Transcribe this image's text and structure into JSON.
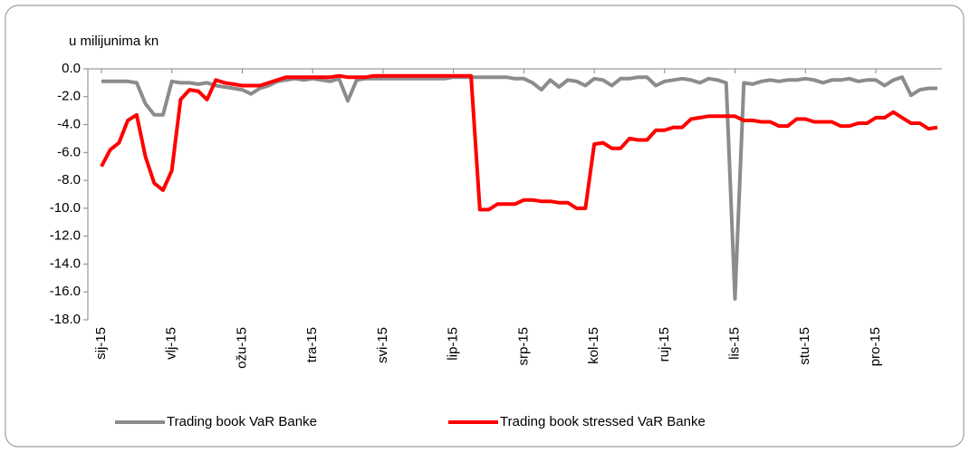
{
  "chart_data": {
    "type": "line",
    "axis_title": "u milijunima kn",
    "categories": [
      "sij-15",
      null,
      null,
      null,
      null,
      null,
      null,
      null,
      "vlj-15",
      null,
      null,
      null,
      null,
      null,
      null,
      null,
      "ožu-15",
      null,
      null,
      null,
      null,
      null,
      null,
      null,
      "tra-15",
      null,
      null,
      null,
      null,
      null,
      null,
      null,
      "svi-15",
      null,
      null,
      null,
      null,
      null,
      null,
      null,
      "lip-15",
      null,
      null,
      null,
      null,
      null,
      null,
      null,
      "srp-15",
      null,
      null,
      null,
      null,
      null,
      null,
      null,
      "kol-15",
      null,
      null,
      null,
      null,
      null,
      null,
      null,
      "ruj-15",
      null,
      null,
      null,
      null,
      null,
      null,
      null,
      "lis-15",
      null,
      null,
      null,
      null,
      null,
      null,
      null,
      "stu-15",
      null,
      null,
      null,
      null,
      null,
      null,
      null,
      "pro-15",
      null,
      null,
      null,
      null,
      null,
      null,
      null
    ],
    "series": [
      {
        "name": "Trading book VaR Banke",
        "color": "#8c8c8c",
        "values": [
          -0.9,
          -0.9,
          -0.9,
          -0.9,
          -1.0,
          -2.5,
          -3.3,
          -3.3,
          -0.9,
          -1.0,
          -1.0,
          -1.1,
          -1.0,
          -1.2,
          -1.3,
          -1.4,
          -1.5,
          -1.8,
          -1.4,
          -1.2,
          -0.9,
          -0.8,
          -0.7,
          -0.8,
          -0.7,
          -0.8,
          -0.9,
          -0.7,
          -2.3,
          -0.8,
          -0.7,
          -0.7,
          -0.7,
          -0.7,
          -0.7,
          -0.7,
          -0.7,
          -0.7,
          -0.7,
          -0.7,
          -0.6,
          -0.6,
          -0.6,
          -0.6,
          -0.6,
          -0.6,
          -0.6,
          -0.7,
          -0.7,
          -1.0,
          -1.5,
          -0.8,
          -1.3,
          -0.8,
          -0.9,
          -1.2,
          -0.7,
          -0.8,
          -1.2,
          -0.7,
          -0.7,
          -0.6,
          -0.6,
          -1.2,
          -0.9,
          -0.8,
          -0.7,
          -0.8,
          -1.0,
          -0.7,
          -0.8,
          -1.0,
          -16.5,
          -1.0,
          -1.1,
          -0.9,
          -0.8,
          -0.9,
          -0.8,
          -0.8,
          -0.7,
          -0.8,
          -1.0,
          -0.8,
          -0.8,
          -0.7,
          -0.9,
          -0.8,
          -0.8,
          -1.2,
          -0.8,
          -0.6,
          -1.9,
          -1.5,
          -1.4,
          -1.4
        ]
      },
      {
        "name": "Trading book stressed VaR Banke",
        "color": "#ff0000",
        "values": [
          -7.0,
          -5.8,
          -5.3,
          -3.7,
          -3.3,
          -6.3,
          -8.2,
          -8.7,
          -7.3,
          -2.2,
          -1.5,
          -1.6,
          -2.2,
          -0.8,
          -1.0,
          -1.1,
          -1.2,
          -1.2,
          -1.2,
          -1.0,
          -0.8,
          -0.6,
          -0.6,
          -0.6,
          -0.6,
          -0.6,
          -0.6,
          -0.5,
          -0.6,
          -0.6,
          -0.6,
          -0.5,
          -0.5,
          -0.5,
          -0.5,
          -0.5,
          -0.5,
          -0.5,
          -0.5,
          -0.5,
          -0.5,
          -0.5,
          -0.5,
          -10.1,
          -10.1,
          -9.7,
          -9.7,
          -9.7,
          -9.4,
          -9.4,
          -9.5,
          -9.5,
          -9.6,
          -9.6,
          -10.0,
          -10.0,
          -5.4,
          -5.3,
          -5.7,
          -5.7,
          -5.0,
          -5.1,
          -5.1,
          -4.4,
          -4.4,
          -4.2,
          -4.2,
          -3.6,
          -3.5,
          -3.4,
          -3.4,
          -3.4,
          -3.4,
          -3.7,
          -3.7,
          -3.8,
          -3.8,
          -4.1,
          -4.1,
          -3.6,
          -3.6,
          -3.8,
          -3.8,
          -3.8,
          -4.1,
          -4.1,
          -3.9,
          -3.9,
          -3.5,
          -3.5,
          -3.1,
          -3.5,
          -3.9,
          -3.9,
          -4.3,
          -4.2
        ]
      }
    ],
    "ylim": [
      -18,
      0
    ],
    "yticks": [
      {
        "value": 0,
        "label": "0.0"
      },
      {
        "value": -2,
        "label": "-2.0"
      },
      {
        "value": -4,
        "label": "-4.0"
      },
      {
        "value": -6,
        "label": "-6.0"
      },
      {
        "value": -8,
        "label": "-8.0"
      },
      {
        "value": -10,
        "label": "-10.0"
      },
      {
        "value": -12,
        "label": "-12.0"
      },
      {
        "value": -14,
        "label": "-14.0"
      },
      {
        "value": -16,
        "label": "-16.0"
      },
      {
        "value": -18,
        "label": "-18.0"
      }
    ],
    "grid": false,
    "legend": "bottom"
  }
}
